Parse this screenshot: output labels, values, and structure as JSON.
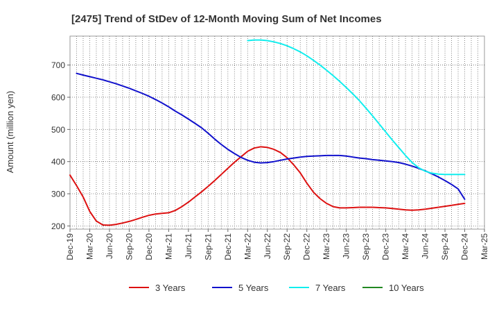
{
  "chart_data": {
    "type": "line",
    "title": "[2475]  Trend of StDev of 12-Month Moving Sum of Net Incomes",
    "ylabel": "Amount (million yen)",
    "xlabel": "",
    "ylim": [
      190,
      790
    ],
    "yticks": [
      200,
      300,
      400,
      500,
      600,
      700
    ],
    "x_ticks": [
      "Dec-19",
      "Mar-20",
      "Jun-20",
      "Sep-20",
      "Dec-20",
      "Mar-21",
      "Jun-21",
      "Sep-21",
      "Dec-21",
      "Mar-22",
      "Jun-22",
      "Sep-22",
      "Dec-22",
      "Mar-23",
      "Jun-23",
      "Sep-23",
      "Dec-23",
      "Mar-24",
      "Jun-24",
      "Sep-24",
      "Dec-24",
      "Mar-25"
    ],
    "grid": true,
    "legend_position": "bottom",
    "series": [
      {
        "name": "3 Years",
        "color": "#dd1111",
        "points": [
          [
            "Dec-19",
            358
          ],
          [
            "Jan-20",
            325
          ],
          [
            "Feb-20",
            290
          ],
          [
            "Mar-20",
            245
          ],
          [
            "Apr-20",
            215
          ],
          [
            "May-20",
            203
          ],
          [
            "Jun-20",
            202
          ],
          [
            "Jul-20",
            205
          ],
          [
            "Aug-20",
            209
          ],
          [
            "Sep-20",
            214
          ],
          [
            "Oct-20",
            220
          ],
          [
            "Nov-20",
            227
          ],
          [
            "Dec-20",
            233
          ],
          [
            "Jan-21",
            237
          ],
          [
            "Feb-21",
            239
          ],
          [
            "Mar-21",
            241
          ],
          [
            "Apr-21",
            248
          ],
          [
            "May-21",
            260
          ],
          [
            "Jun-21",
            274
          ],
          [
            "Jul-21",
            290
          ],
          [
            "Aug-21",
            306
          ],
          [
            "Sep-21",
            323
          ],
          [
            "Oct-21",
            341
          ],
          [
            "Nov-21",
            360
          ],
          [
            "Dec-21",
            379
          ],
          [
            "Jan-22",
            398
          ],
          [
            "Feb-22",
            415
          ],
          [
            "Mar-22",
            432
          ],
          [
            "Apr-22",
            442
          ],
          [
            "May-22",
            446
          ],
          [
            "Jun-22",
            444
          ],
          [
            "Jul-22",
            438
          ],
          [
            "Aug-22",
            428
          ],
          [
            "Sep-22",
            412
          ],
          [
            "Oct-22",
            390
          ],
          [
            "Nov-22",
            365
          ],
          [
            "Dec-22",
            333
          ],
          [
            "Jan-23",
            305
          ],
          [
            "Feb-23",
            285
          ],
          [
            "Mar-23",
            270
          ],
          [
            "Apr-23",
            260
          ],
          [
            "May-23",
            256
          ],
          [
            "Jun-23",
            256
          ],
          [
            "Jul-23",
            257
          ],
          [
            "Aug-23",
            258
          ],
          [
            "Sep-23",
            258
          ],
          [
            "Oct-23",
            258
          ],
          [
            "Nov-23",
            257
          ],
          [
            "Dec-23",
            256
          ],
          [
            "Jan-24",
            254
          ],
          [
            "Feb-24",
            252
          ],
          [
            "Mar-24",
            250
          ],
          [
            "Apr-24",
            249
          ],
          [
            "May-24",
            250
          ],
          [
            "Jun-24",
            252
          ],
          [
            "Jul-24",
            255
          ],
          [
            "Aug-24",
            258
          ],
          [
            "Sep-24",
            261
          ],
          [
            "Oct-24",
            264
          ],
          [
            "Nov-24",
            267
          ],
          [
            "Dec-24",
            270
          ]
        ]
      },
      {
        "name": "5 Years",
        "color": "#1111cc",
        "points": [
          [
            "Jan-20",
            674
          ],
          [
            "Feb-20",
            669
          ],
          [
            "Mar-20",
            664
          ],
          [
            "Apr-20",
            659
          ],
          [
            "May-20",
            654
          ],
          [
            "Jun-20",
            648
          ],
          [
            "Jul-20",
            642
          ],
          [
            "Aug-20",
            635
          ],
          [
            "Sep-20",
            628
          ],
          [
            "Oct-20",
            620
          ],
          [
            "Nov-20",
            612
          ],
          [
            "Dec-20",
            603
          ],
          [
            "Jan-21",
            593
          ],
          [
            "Feb-21",
            582
          ],
          [
            "Mar-21",
            570
          ],
          [
            "Apr-21",
            557
          ],
          [
            "May-21",
            545
          ],
          [
            "Jun-21",
            532
          ],
          [
            "Jul-21",
            519
          ],
          [
            "Aug-21",
            505
          ],
          [
            "Sep-21",
            488
          ],
          [
            "Oct-21",
            470
          ],
          [
            "Nov-21",
            453
          ],
          [
            "Dec-21",
            438
          ],
          [
            "Jan-22",
            425
          ],
          [
            "Feb-22",
            413
          ],
          [
            "Mar-22",
            404
          ],
          [
            "Apr-22",
            398
          ],
          [
            "May-22",
            396
          ],
          [
            "Jun-22",
            397
          ],
          [
            "Jul-22",
            400
          ],
          [
            "Aug-22",
            404
          ],
          [
            "Sep-22",
            408
          ],
          [
            "Oct-22",
            411
          ],
          [
            "Nov-22",
            414
          ],
          [
            "Dec-22",
            416
          ],
          [
            "Jan-23",
            417
          ],
          [
            "Feb-23",
            418
          ],
          [
            "Mar-23",
            419
          ],
          [
            "Apr-23",
            419
          ],
          [
            "May-23",
            419
          ],
          [
            "Jun-23",
            417
          ],
          [
            "Jul-23",
            414
          ],
          [
            "Aug-23",
            411
          ],
          [
            "Sep-23",
            409
          ],
          [
            "Oct-23",
            406
          ],
          [
            "Nov-23",
            404
          ],
          [
            "Dec-23",
            402
          ],
          [
            "Jan-24",
            400
          ],
          [
            "Feb-24",
            397
          ],
          [
            "Mar-24",
            392
          ],
          [
            "Apr-24",
            386
          ],
          [
            "May-24",
            379
          ],
          [
            "Jun-24",
            371
          ],
          [
            "Jul-24",
            362
          ],
          [
            "Aug-24",
            352
          ],
          [
            "Sep-24",
            341
          ],
          [
            "Oct-24",
            329
          ],
          [
            "Nov-24",
            315
          ],
          [
            "Dec-24",
            283
          ]
        ]
      },
      {
        "name": "7 Years",
        "color": "#11eeee",
        "points": [
          [
            "Mar-22",
            776
          ],
          [
            "Apr-22",
            778
          ],
          [
            "May-22",
            778
          ],
          [
            "Jun-22",
            776
          ],
          [
            "Jul-22",
            772
          ],
          [
            "Aug-22",
            767
          ],
          [
            "Sep-22",
            760
          ],
          [
            "Oct-22",
            751
          ],
          [
            "Nov-22",
            741
          ],
          [
            "Dec-22",
            729
          ],
          [
            "Jan-23",
            715
          ],
          [
            "Feb-23",
            700
          ],
          [
            "Mar-23",
            684
          ],
          [
            "Apr-23",
            667
          ],
          [
            "May-23",
            649
          ],
          [
            "Jun-23",
            630
          ],
          [
            "Jul-23",
            610
          ],
          [
            "Aug-23",
            589
          ],
          [
            "Sep-23",
            566
          ],
          [
            "Oct-23",
            542
          ],
          [
            "Nov-23",
            517
          ],
          [
            "Dec-23",
            492
          ],
          [
            "Jan-24",
            467
          ],
          [
            "Feb-24",
            443
          ],
          [
            "Mar-24",
            419
          ],
          [
            "Apr-24",
            397
          ],
          [
            "May-24",
            381
          ],
          [
            "Jun-24",
            370
          ],
          [
            "Jul-24",
            364
          ],
          [
            "Aug-24",
            361
          ],
          [
            "Sep-24",
            360
          ],
          [
            "Oct-24",
            360
          ],
          [
            "Nov-24",
            360
          ],
          [
            "Dec-24",
            360
          ]
        ]
      },
      {
        "name": "10 Years",
        "color": "#228822",
        "points": []
      }
    ]
  }
}
